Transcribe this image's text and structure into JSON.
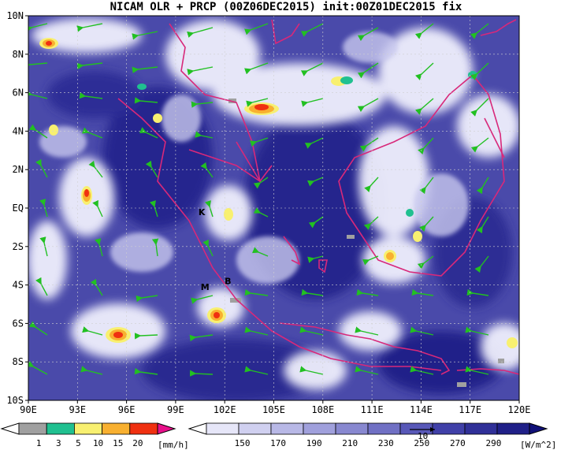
{
  "title": "NICAM OLR + PRCP (00Z06DEC2015) init:00Z01DEC2015 fix",
  "map": {
    "lon_labels": [
      "90E",
      "93E",
      "96E",
      "99E",
      "102E",
      "105E",
      "108E",
      "111E",
      "114E",
      "117E",
      "120E"
    ],
    "lat_labels": [
      "10N",
      "8N",
      "6N",
      "4N",
      "2N",
      "EQ",
      "2S",
      "4S",
      "6S",
      "8S",
      "10S"
    ],
    "markers": [
      {
        "label": "K",
        "lon": 100.6,
        "lat": -0.2
      },
      {
        "label": "M",
        "lon": 100.8,
        "lat": -4.1
      },
      {
        "label": "B",
        "lon": 102.2,
        "lat": -3.8
      }
    ],
    "colors": {
      "ocean_dark": "#20208a",
      "olr_mid": "#5a5ab8",
      "cloud_white": "#f4f4ff",
      "coast": "#d8287a",
      "wind": "#22c022"
    }
  },
  "prcp_colorbar": {
    "ticks": [
      "1",
      "3",
      "5",
      "10",
      "15",
      "20"
    ],
    "unit": "[mm/h]",
    "colors": [
      "#ffffff",
      "#a0a0a0",
      "#20c090",
      "#f8f070",
      "#f8b030",
      "#f03010",
      "#e8108a"
    ]
  },
  "olr_colorbar": {
    "ticks": [
      "150",
      "170",
      "190",
      "210",
      "230",
      "250",
      "270",
      "290"
    ],
    "unit": "[W/m^2]",
    "colors": [
      "#ffffff",
      "#e6e6f8",
      "#d0d0f0",
      "#b8b8e6",
      "#a0a0dc",
      "#8888d0",
      "#7070c4",
      "#5858b8",
      "#4040a8",
      "#303098",
      "#202088",
      "#101078"
    ],
    "vector_ref": "10"
  }
}
